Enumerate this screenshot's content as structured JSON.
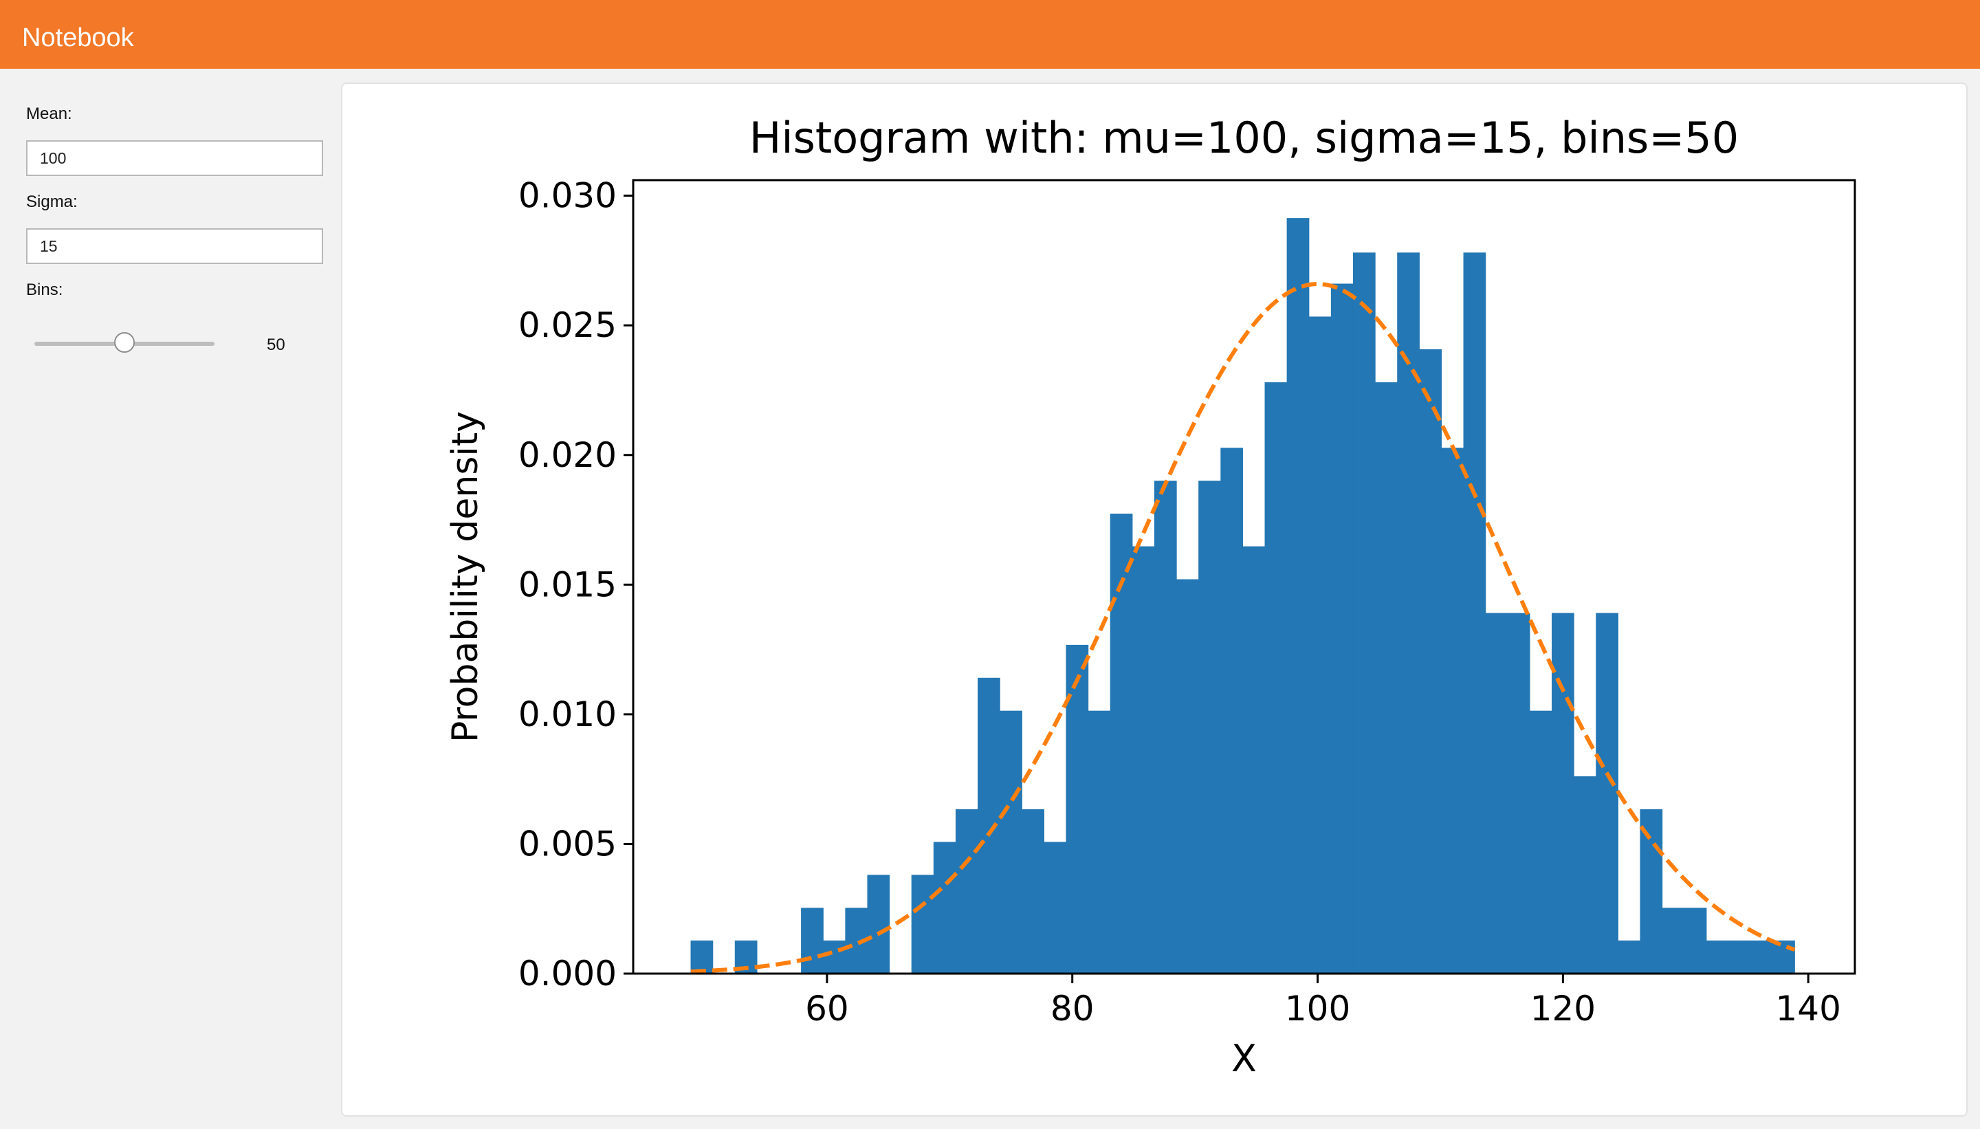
{
  "app": {
    "title": "Notebook"
  },
  "controls": {
    "mean": {
      "label": "Mean:",
      "value": "100"
    },
    "sigma": {
      "label": "Sigma:",
      "value": "15"
    },
    "bins": {
      "label": "Bins:",
      "value": "50",
      "level": 50,
      "min": 0,
      "max": 100
    }
  },
  "colors": {
    "header": "#f37828",
    "bars": "#2377b4",
    "curve": "#ff7f0e"
  },
  "chart_data": {
    "type": "bar",
    "title": "Histogram with: mu=100, sigma=15, bins=50",
    "xlabel": "X",
    "ylabel": "Probability density",
    "xlim": [
      44.2,
      143.8
    ],
    "ylim": [
      0,
      0.0306
    ],
    "xticks": [
      60,
      80,
      100,
      120,
      140
    ],
    "xtick_labels": [
      "60",
      "80",
      "100",
      "120",
      "140"
    ],
    "yticks": [
      0,
      0.005,
      0.01,
      0.015,
      0.02,
      0.025,
      0.03
    ],
    "ytick_labels": [
      "0.000",
      "0.005",
      "0.010",
      "0.015",
      "0.020",
      "0.025",
      "0.030"
    ],
    "grid": false,
    "bin_start": 48.9,
    "bin_width": 1.8,
    "values": [
      0.00127,
      0,
      0.00127,
      0,
      0,
      0.00253,
      0.00127,
      0.00253,
      0.0038,
      0,
      0.0038,
      0.00507,
      0.00633,
      0.0114,
      0.01013,
      0.00633,
      0.00507,
      0.01267,
      0.01013,
      0.01773,
      0.01647,
      0.019,
      0.0152,
      0.019,
      0.02027,
      0.01647,
      0.0228,
      0.02913,
      0.02533,
      0.0266,
      0.0278,
      0.0228,
      0.0278,
      0.02407,
      0.02027,
      0.0278,
      0.0139,
      0.0139,
      0.01013,
      0.0139,
      0.0076,
      0.0139,
      0.00127,
      0.00633,
      0.00253,
      0.00253,
      0.00127,
      0.00127,
      0.00127,
      0.00127
    ],
    "series": [
      {
        "type": "bar",
        "values_ref": "values"
      },
      {
        "type": "line",
        "style": "dashed",
        "function": "normal_pdf",
        "mu": 100,
        "sigma": 15
      }
    ]
  }
}
